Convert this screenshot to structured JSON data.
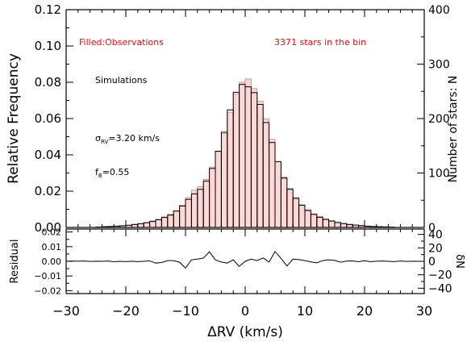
{
  "chart_data": [
    {
      "type": "bar",
      "panel": "top",
      "xlim": [
        -30,
        30
      ],
      "ylim": [
        0,
        0.12
      ],
      "y2lim": [
        0,
        400
      ],
      "xlabel": "ΔRV (km/s)",
      "ylabel": "Relative Frequency",
      "y2label": "Number of stars: N",
      "yticks": [
        "0.00",
        "0.02",
        "0.04",
        "0.06",
        "0.08",
        "0.10",
        "0.12"
      ],
      "y2ticks": [
        "0",
        "100",
        "200",
        "300",
        "400"
      ],
      "xticks": [
        "−30",
        "−20",
        "−10",
        "0",
        "10",
        "20",
        "30"
      ],
      "bin_width": 1,
      "bin_centers": [
        -24.5,
        -23.5,
        -22.5,
        -21.5,
        -20.5,
        -19.5,
        -18.5,
        -17.5,
        -16.5,
        -15.5,
        -14.5,
        -13.5,
        -12.5,
        -11.5,
        -10.5,
        -9.5,
        -8.5,
        -7.5,
        -6.5,
        -5.5,
        -4.5,
        -3.5,
        -2.5,
        -1.5,
        -0.5,
        0.5,
        1.5,
        2.5,
        3.5,
        4.5,
        5.5,
        6.5,
        7.5,
        8.5,
        9.5,
        10.5,
        11.5,
        12.5,
        13.5,
        14.5,
        15.5,
        16.5,
        17.5,
        18.5,
        19.5,
        20.5,
        21.5,
        22.5,
        23.5,
        24.5
      ],
      "series": [
        {
          "name": "Observations",
          "style": "filled",
          "values": [
            0.0003,
            0.0005,
            0.0006,
            0.0008,
            0.001,
            0.0013,
            0.0018,
            0.0022,
            0.0028,
            0.0036,
            0.0045,
            0.0058,
            0.0072,
            0.0092,
            0.0122,
            0.0165,
            0.0205,
            0.0225,
            0.0265,
            0.0333,
            0.0418,
            0.0518,
            0.0635,
            0.0735,
            0.08,
            0.0818,
            0.0765,
            0.0695,
            0.0598,
            0.0485,
            0.0362,
            0.0278,
            0.0215,
            0.0165,
            0.0125,
            0.0098,
            0.0075,
            0.006,
            0.0047,
            0.0037,
            0.0029,
            0.0023,
            0.0018,
            0.0014,
            0.0011,
            0.0008,
            0.0006,
            0.0004,
            0.0003,
            0.0002
          ]
        },
        {
          "name": "Simulations",
          "style": "outline",
          "values": [
            0.0002,
            0.0004,
            0.0005,
            0.0007,
            0.0009,
            0.0012,
            0.0016,
            0.002,
            0.0026,
            0.0033,
            0.0042,
            0.0055,
            0.0068,
            0.009,
            0.0118,
            0.0155,
            0.0185,
            0.021,
            0.0255,
            0.0325,
            0.042,
            0.0525,
            0.0648,
            0.0745,
            0.0788,
            0.0775,
            0.0743,
            0.0678,
            0.0578,
            0.0468,
            0.0363,
            0.0272,
            0.021,
            0.016,
            0.0122,
            0.0093,
            0.0072,
            0.0056,
            0.0044,
            0.0035,
            0.0027,
            0.0021,
            0.0016,
            0.0013,
            0.001,
            0.0007,
            0.0005,
            0.0004,
            0.0003,
            0.0002
          ]
        }
      ],
      "annotations": {
        "filled_label": "Filled:Observations",
        "count_label": "3371 stars in the bin",
        "sim_label": "Simulations",
        "sigma_symbol": "σ",
        "sigma_sub": "RV",
        "sigma_value": "=3.20 km/s",
        "fb_symbol": "f",
        "fb_sub": "B",
        "fb_value": "=0.55"
      }
    },
    {
      "type": "line",
      "panel": "bottom",
      "xlim": [
        -30,
        30
      ],
      "ylim": [
        -0.022,
        0.022
      ],
      "y2lim": [
        -48,
        48
      ],
      "ylabel": "Residual",
      "y2label": "δN",
      "yticks": [
        "0.02",
        "0.01",
        "0.00",
        "−0.01",
        "−0.02"
      ],
      "yticks_values": [
        0.02,
        0.01,
        0.0,
        -0.01,
        -0.02
      ],
      "y2ticks": [
        "40",
        "20",
        "0",
        "−20",
        "−40"
      ],
      "y2ticks_values": [
        40,
        20,
        0,
        -20,
        -40
      ],
      "x": [
        -30,
        -29,
        -28,
        -27,
        -26,
        -25,
        -24,
        -23,
        -22,
        -21,
        -20,
        -19,
        -18,
        -17,
        -16,
        -15,
        -14,
        -13,
        -12,
        -11,
        -10,
        -9,
        -8,
        -7,
        -6,
        -5,
        -4,
        -3,
        -2,
        -1,
        0,
        1,
        2,
        3,
        4,
        5,
        6,
        7,
        8,
        9,
        10,
        11,
        12,
        13,
        14,
        15,
        16,
        17,
        18,
        19,
        20,
        21,
        22,
        23,
        24,
        25,
        26,
        27,
        28,
        29,
        30
      ],
      "values": [
        0.0,
        0.0002,
        0.0001,
        0.0002,
        -0.0001,
        0.0001,
        0.0,
        0.0002,
        -0.0003,
        0.0,
        -0.0002,
        0.0001,
        -0.0002,
        0.0,
        0.0003,
        -0.0012,
        -0.0008,
        0.0005,
        0.0005,
        -0.0006,
        -0.0046,
        0.001,
        0.0015,
        0.0022,
        0.0065,
        0.001,
        -0.0005,
        -0.0012,
        0.001,
        -0.0035,
        0.0,
        0.0015,
        0.0005,
        0.0023,
        -0.0005,
        0.0067,
        0.002,
        -0.0032,
        0.0015,
        0.0012,
        0.0005,
        -0.0004,
        -0.001,
        0.0005,
        0.001,
        0.0006,
        -0.0006,
        0.0002,
        0.0003,
        -0.0003,
        0.0004,
        -0.0003,
        0.0001,
        0.0002,
        0.0,
        -0.0002,
        0.0002,
        -0.0001,
        0.0001,
        0.0,
        0.0
      ]
    }
  ]
}
